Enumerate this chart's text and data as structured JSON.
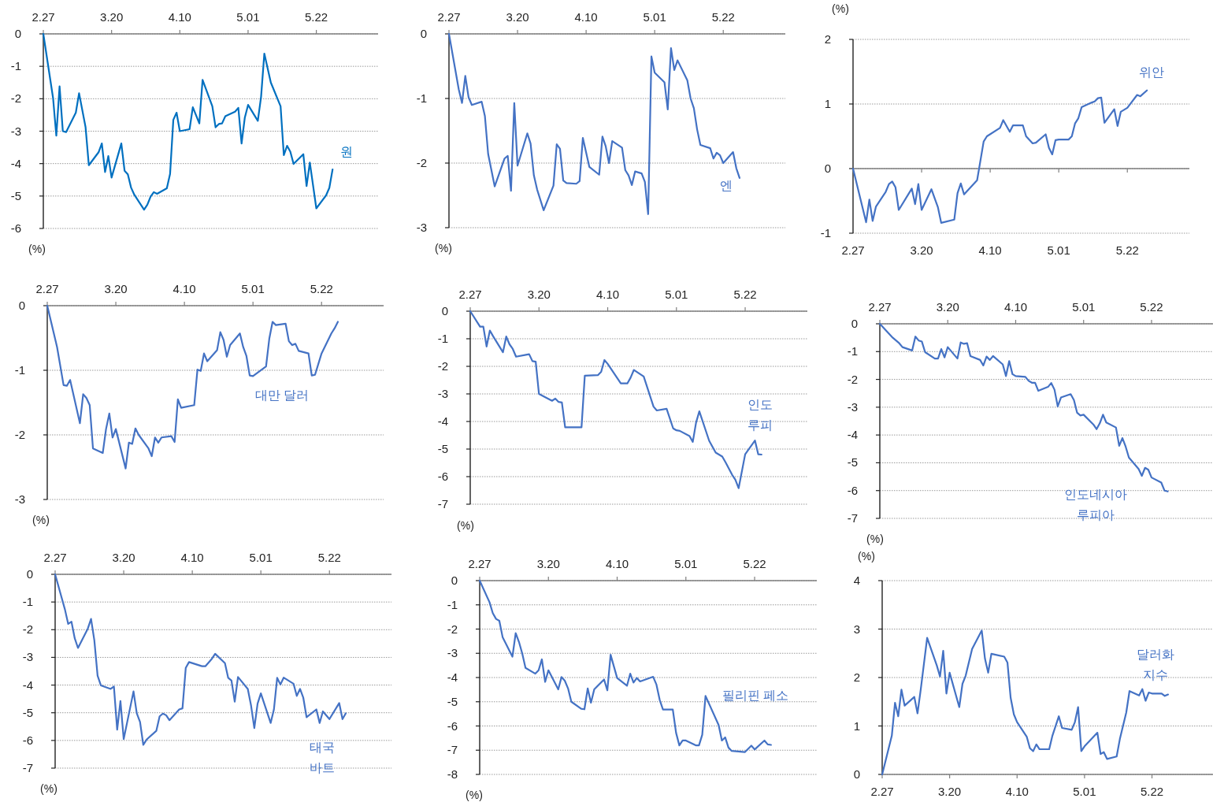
{
  "chart_data": [
    {
      "type": "line",
      "ylabel": "(%)",
      "grid": "y",
      "xlim": [
        "--02-27",
        "--06-10"
      ],
      "ylim": [
        -6,
        0
      ],
      "yticks": [
        0,
        -1,
        -2,
        -3,
        -4,
        -5,
        -6
      ],
      "xticks": [
        {
          "value": "--02-27",
          "label": "2.27"
        },
        {
          "value": "--03-20",
          "label": "3.20"
        },
        {
          "value": "--04-10",
          "label": "4.10"
        },
        {
          "value": "--05-01",
          "label": "5.01"
        },
        {
          "value": "--05-22",
          "label": "5.22"
        }
      ],
      "x": [
        "--02-27",
        "--03-02",
        "--03-03",
        "--03-04",
        "--03-05",
        "--03-06",
        "--03-09",
        "--03-10",
        "--03-12",
        "--03-13",
        "--03-16",
        "--03-17",
        "--03-18",
        "--03-19",
        "--03-20",
        "--03-23",
        "--03-24",
        "--03-25",
        "--03-26",
        "--03-27",
        "--03-30",
        "--03-31",
        "--04-01",
        "--04-02",
        "--04-03",
        "--04-06",
        "--04-07",
        "--04-08",
        "--04-09",
        "--04-10",
        "--04-13",
        "--04-14",
        "--04-16",
        "--04-17",
        "--04-20",
        "--04-21",
        "--04-22",
        "--04-23",
        "--04-24",
        "--04-27",
        "--04-28",
        "--04-29",
        "--04-30",
        "--05-01",
        "--05-04",
        "--05-05",
        "--05-06",
        "--05-08",
        "--05-11",
        "--05-12",
        "--05-13",
        "--05-14",
        "--05-15",
        "--05-18",
        "--05-19",
        "--05-20",
        "--05-22",
        "--05-25",
        "--05-26",
        "--05-27"
      ],
      "series": [
        {
          "name": "원",
          "color": "#0070c0",
          "values": [
            0,
            -1.98,
            -3.14,
            -1.62,
            -3.0,
            -3.03,
            -2.43,
            -1.83,
            -2.88,
            -4.05,
            -3.65,
            -3.38,
            -4.26,
            -3.77,
            -4.43,
            -3.38,
            -4.22,
            -4.33,
            -4.74,
            -4.96,
            -5.42,
            -5.27,
            -5.02,
            -4.88,
            -4.93,
            -4.76,
            -4.32,
            -2.65,
            -2.43,
            -3.0,
            -2.94,
            -2.26,
            -2.76,
            -1.42,
            -2.23,
            -2.88,
            -2.78,
            -2.76,
            -2.54,
            -2.4,
            -2.28,
            -3.38,
            -2.58,
            -2.19,
            -2.68,
            -1.94,
            -0.61,
            -1.5,
            -2.23,
            -3.74,
            -3.45,
            -3.63,
            -4.01,
            -3.71,
            -4.69,
            -3.97,
            -5.38,
            -4.98,
            -4.75,
            -4.18
          ]
        }
      ]
    },
    {
      "type": "line",
      "ylabel": "(%)",
      "grid": "y",
      "xlim": [
        "--02-27",
        "--06-10"
      ],
      "ylim": [
        -3,
        0
      ],
      "yticks": [
        0,
        -1,
        -2,
        -3
      ],
      "xticks": [
        {
          "value": "--02-27",
          "label": "2.27"
        },
        {
          "value": "--03-20",
          "label": "3.20"
        },
        {
          "value": "--04-10",
          "label": "4.10"
        },
        {
          "value": "--05-01",
          "label": "5.01"
        },
        {
          "value": "--05-22",
          "label": "5.22"
        }
      ],
      "x": [
        "--02-27",
        "--03-02",
        "--03-03",
        "--03-04",
        "--03-05",
        "--03-06",
        "--03-09",
        "--03-10",
        "--03-11",
        "--03-13",
        "--03-16",
        "--03-17",
        "--03-18",
        "--03-19",
        "--03-20",
        "--03-23",
        "--03-24",
        "--03-25",
        "--03-26",
        "--03-28",
        "--03-31",
        "--04-01",
        "--04-02",
        "--04-03",
        "--04-04",
        "--04-07",
        "--04-08",
        "--04-09",
        "--04-11",
        "--04-14",
        "--04-15",
        "--04-16",
        "--04-17",
        "--04-18",
        "--04-21",
        "--04-22",
        "--04-23",
        "--04-24",
        "--04-25",
        "--04-27",
        "--04-28",
        "--04-29",
        "--04-30",
        "--05-01",
        "--05-04",
        "--05-05",
        "--05-06",
        "--05-07",
        "--05-08",
        "--05-11",
        "--05-12",
        "--05-13",
        "--05-14",
        "--05-15",
        "--05-18",
        "--05-19",
        "--05-20",
        "--05-21",
        "--05-22",
        "--05-25",
        "--05-26",
        "--05-27"
      ],
      "series": [
        {
          "name": "엔",
          "color": "#4472c4",
          "values": [
            0,
            -0.86,
            -1.07,
            -0.65,
            -0.98,
            -1.1,
            -1.05,
            -1.27,
            -1.86,
            -2.36,
            -1.93,
            -1.89,
            -2.43,
            -1.07,
            -2.04,
            -1.54,
            -1.7,
            -2.19,
            -2.41,
            -2.73,
            -2.35,
            -1.71,
            -1.78,
            -2.27,
            -2.31,
            -2.32,
            -2.28,
            -1.61,
            -2.06,
            -2.18,
            -1.59,
            -1.74,
            -2.0,
            -1.66,
            -1.76,
            -2.11,
            -2.19,
            -2.34,
            -2.13,
            -2.16,
            -2.29,
            -2.79,
            -0.35,
            -0.6,
            -0.75,
            -1.17,
            -0.22,
            -0.56,
            -0.41,
            -0.72,
            -1.0,
            -1.15,
            -1.48,
            -1.72,
            -1.77,
            -1.93,
            -1.84,
            -1.88,
            -2.0,
            -1.83,
            -2.08,
            -2.23
          ]
        }
      ]
    },
    {
      "type": "line",
      "ylabel": "(%)",
      "grid": "y",
      "xlim": [
        "--02-27",
        "--06-10"
      ],
      "ylim": [
        -1,
        2
      ],
      "yticks": [
        -1,
        0,
        1,
        2
      ],
      "xticks": [
        {
          "value": "--02-27",
          "label": "2.27"
        },
        {
          "value": "--03-20",
          "label": "3.20"
        },
        {
          "value": "--04-10",
          "label": "4.10"
        },
        {
          "value": "--05-01",
          "label": "5.01"
        },
        {
          "value": "--05-22",
          "label": "5.22"
        }
      ],
      "x": [
        "--02-27",
        "--03-03",
        "--03-04",
        "--03-05",
        "--03-06",
        "--03-09",
        "--03-10",
        "--03-11",
        "--03-12",
        "--03-13",
        "--03-17",
        "--03-18",
        "--03-19",
        "--03-20",
        "--03-23",
        "--03-25",
        "--03-26",
        "--03-30",
        "--03-31",
        "--04-01",
        "--04-02",
        "--04-06",
        "--04-08",
        "--04-09",
        "--04-13",
        "--04-14",
        "--04-16",
        "--04-17",
        "--04-20",
        "--04-21",
        "--04-23",
        "--04-24",
        "--04-27",
        "--04-28",
        "--04-29",
        "--04-30",
        "--05-01",
        "--05-04",
        "--05-05",
        "--05-06",
        "--05-07",
        "--05-08",
        "--05-11",
        "--05-12",
        "--05-13",
        "--05-14",
        "--05-15",
        "--05-18",
        "--05-19",
        "--05-20",
        "--05-22",
        "--05-25",
        "--05-26",
        "--05-28"
      ],
      "series": [
        {
          "name": "위안",
          "color": "#4472c4",
          "values": [
            0,
            -0.83,
            -0.48,
            -0.81,
            -0.59,
            -0.36,
            -0.24,
            -0.2,
            -0.29,
            -0.64,
            -0.31,
            -0.55,
            -0.24,
            -0.64,
            -0.32,
            -0.6,
            -0.84,
            -0.79,
            -0.38,
            -0.23,
            -0.4,
            -0.18,
            0.42,
            0.5,
            0.63,
            0.75,
            0.57,
            0.67,
            0.67,
            0.5,
            0.39,
            0.4,
            0.53,
            0.32,
            0.22,
            0.44,
            0.45,
            0.45,
            0.5,
            0.7,
            0.78,
            0.95,
            1.02,
            1.04,
            1.09,
            1.1,
            0.71,
            0.92,
            0.66,
            0.88,
            0.94,
            1.14,
            1.12,
            1.21
          ]
        }
      ]
    },
    {
      "type": "line",
      "ylabel": "(%)",
      "grid": "y",
      "xlim": [
        "--02-27",
        "--06-10"
      ],
      "ylim": [
        -3,
        0
      ],
      "yticks": [
        0,
        -1,
        -2,
        -3
      ],
      "xticks": [
        {
          "value": "--02-27",
          "label": "2.27"
        },
        {
          "value": "--03-20",
          "label": "3.20"
        },
        {
          "value": "--04-10",
          "label": "4.10"
        },
        {
          "value": "--05-01",
          "label": "5.01"
        },
        {
          "value": "--05-22",
          "label": "5.22"
        }
      ],
      "x": [
        "--02-27",
        "--03-02",
        "--03-04",
        "--03-05",
        "--03-06",
        "--03-09",
        "--03-10",
        "--03-11",
        "--03-12",
        "--03-13",
        "--03-16",
        "--03-17",
        "--03-18",
        "--03-19",
        "--03-20",
        "--03-23",
        "--03-24",
        "--03-25",
        "--03-26",
        "--03-27",
        "--03-30",
        "--03-31",
        "--04-01",
        "--04-02",
        "--04-03",
        "--04-06",
        "--04-07",
        "--04-08",
        "--04-09",
        "--04-13",
        "--04-14",
        "--04-15",
        "--04-16",
        "--04-17",
        "--04-20",
        "--04-21",
        "--04-22",
        "--04-23",
        "--04-24",
        "--04-27",
        "--04-28",
        "--04-29",
        "--04-30",
        "--05-01",
        "--05-05",
        "--05-06",
        "--05-07",
        "--05-08",
        "--05-11",
        "--05-12",
        "--05-13",
        "--05-14",
        "--05-15",
        "--05-18",
        "--05-19",
        "--05-20",
        "--05-22",
        "--05-25",
        "--05-26",
        "--05-27"
      ],
      "series": [
        {
          "name": "대만 달러",
          "color": "#4472c4",
          "values": [
            0,
            -0.64,
            -1.23,
            -1.24,
            -1.15,
            -1.82,
            -1.37,
            -1.43,
            -1.54,
            -2.21,
            -2.28,
            -1.91,
            -1.67,
            -2.04,
            -1.91,
            -2.52,
            -2.12,
            -2.14,
            -1.9,
            -2.0,
            -2.21,
            -2.33,
            -2.04,
            -2.12,
            -2.04,
            -2.02,
            -2.11,
            -1.45,
            -1.58,
            -1.54,
            -0.99,
            -1.01,
            -0.74,
            -0.86,
            -0.69,
            -0.41,
            -0.53,
            -0.79,
            -0.61,
            -0.43,
            -0.64,
            -0.78,
            -1.08,
            -1.09,
            -0.94,
            -0.51,
            -0.25,
            -0.3,
            -0.28,
            -0.55,
            -0.61,
            -0.59,
            -0.7,
            -0.74,
            -1.08,
            -1.07,
            -0.74,
            -0.43,
            -0.35,
            -0.25
          ]
        }
      ]
    },
    {
      "type": "line",
      "ylabel": "(%)",
      "grid": "y",
      "xlim": [
        "--02-27",
        "--06-10"
      ],
      "ylim": [
        -7,
        0
      ],
      "yticks": [
        0,
        -1,
        -2,
        -3,
        -4,
        -5,
        -6,
        -7
      ],
      "xticks": [
        {
          "value": "--02-27",
          "label": "2.27"
        },
        {
          "value": "--03-20",
          "label": "3.20"
        },
        {
          "value": "--04-10",
          "label": "4.10"
        },
        {
          "value": "--05-01",
          "label": "5.01"
        },
        {
          "value": "--05-22",
          "label": "5.22"
        }
      ],
      "x": [
        "--02-27",
        "--03-02",
        "--03-03",
        "--03-04",
        "--03-05",
        "--03-06",
        "--03-09",
        "--03-10",
        "--03-11",
        "--03-12",
        "--03-13",
        "--03-16",
        "--03-17",
        "--03-18",
        "--03-19",
        "--03-20",
        "--03-24",
        "--03-25",
        "--03-26",
        "--03-27",
        "--03-28",
        "--04-02",
        "--04-03",
        "--04-07",
        "--04-08",
        "--04-09",
        "--04-10",
        "--04-14",
        "--04-16",
        "--04-17",
        "--04-18",
        "--04-21",
        "--04-24",
        "--04-25",
        "--04-28",
        "--04-30",
        "--05-01",
        "--05-02",
        "--05-05",
        "--05-06",
        "--05-07",
        "--05-08",
        "--05-11",
        "--05-13",
        "--05-15",
        "--05-16",
        "--05-18",
        "--05-19",
        "--05-20",
        "--05-22",
        "--05-25",
        "--05-26",
        "--05-27"
      ],
      "series": [
        {
          "name": "인도 루피",
          "color": "#4472c4",
          "values": [
            0,
            -0.56,
            -0.56,
            -1.28,
            -0.7,
            -0.91,
            -1.49,
            -0.92,
            -1.2,
            -1.37,
            -1.65,
            -1.58,
            -1.56,
            -1.81,
            -1.83,
            -3.0,
            -3.25,
            -3.17,
            -3.29,
            -3.31,
            -4.21,
            -4.21,
            -2.34,
            -2.32,
            -2.2,
            -1.77,
            -1.91,
            -2.62,
            -2.62,
            -2.41,
            -2.13,
            -2.37,
            -3.46,
            -3.6,
            -3.54,
            -4.25,
            -4.32,
            -4.34,
            -4.53,
            -4.74,
            -4.04,
            -3.63,
            -4.7,
            -5.13,
            -5.27,
            -5.48,
            -5.93,
            -6.11,
            -6.42,
            -5.19,
            -4.69,
            -5.19,
            -5.2
          ]
        }
      ]
    },
    {
      "type": "line",
      "ylabel": "(%)",
      "grid": "y",
      "xlim": [
        "--02-27",
        "--06-10"
      ],
      "ylim": [
        -7,
        0
      ],
      "yticks": [
        0,
        -1,
        -2,
        -3,
        -4,
        -5,
        -6,
        -7
      ],
      "xticks": [
        {
          "value": "--02-27",
          "label": "2.27"
        },
        {
          "value": "--03-20",
          "label": "3.20"
        },
        {
          "value": "--04-10",
          "label": "4.10"
        },
        {
          "value": "--05-01",
          "label": "5.01"
        },
        {
          "value": "--05-22",
          "label": "5.22"
        }
      ],
      "x": [
        "--02-27",
        "--03-03",
        "--03-05",
        "--03-06",
        "--03-09",
        "--03-10",
        "--03-11",
        "--03-12",
        "--03-13",
        "--03-16",
        "--03-17",
        "--03-18",
        "--03-19",
        "--03-20",
        "--03-23",
        "--03-24",
        "--03-25",
        "--03-26",
        "--03-27",
        "--03-30",
        "--03-31",
        "--04-01",
        "--04-02",
        "--04-03",
        "--04-06",
        "--04-07",
        "--04-08",
        "--04-09",
        "--04-10",
        "--04-13",
        "--04-14",
        "--04-15",
        "--04-16",
        "--04-17",
        "--04-20",
        "--04-21",
        "--04-22",
        "--04-23",
        "--04-24",
        "--04-27",
        "--04-28",
        "--04-29",
        "--04-30",
        "--05-01",
        "--05-04",
        "--05-05",
        "--05-06",
        "--05-07",
        "--05-08",
        "--05-11",
        "--05-12",
        "--05-13",
        "--05-14",
        "--05-15",
        "--05-18",
        "--05-19",
        "--05-20",
        "--05-21",
        "--05-22",
        "--05-25",
        "--05-26",
        "--05-27"
      ],
      "series": [
        {
          "name": "인도네시아 루피아",
          "color": "#4472c4",
          "values": [
            0,
            -0.5,
            -0.7,
            -0.84,
            -0.96,
            -0.46,
            -0.6,
            -0.64,
            -1.02,
            -1.25,
            -1.25,
            -0.91,
            -1.21,
            -0.84,
            -1.25,
            -0.67,
            -0.72,
            -0.7,
            -1.16,
            -1.3,
            -1.5,
            -1.18,
            -1.3,
            -1.16,
            -1.46,
            -1.88,
            -1.34,
            -1.81,
            -1.88,
            -1.91,
            -2.05,
            -2.12,
            -2.12,
            -2.41,
            -2.27,
            -2.13,
            -2.37,
            -2.97,
            -2.65,
            -2.53,
            -2.74,
            -3.2,
            -3.3,
            -3.27,
            -3.62,
            -3.79,
            -3.58,
            -3.27,
            -3.55,
            -3.73,
            -4.39,
            -4.11,
            -4.42,
            -4.81,
            -5.22,
            -5.47,
            -5.18,
            -5.25,
            -5.53,
            -5.71,
            -6.0,
            -6.03
          ]
        }
      ]
    },
    {
      "type": "line",
      "ylabel": "(%)",
      "grid": "y",
      "xlim": [
        "--02-27",
        "--06-10"
      ],
      "ylim": [
        -7,
        0
      ],
      "yticks": [
        0,
        -1,
        -2,
        -3,
        -4,
        -5,
        -6,
        -7
      ],
      "xticks": [
        {
          "value": "--02-27",
          "label": "2.27"
        },
        {
          "value": "--03-20",
          "label": "3.20"
        },
        {
          "value": "--04-10",
          "label": "4.10"
        },
        {
          "value": "--05-01",
          "label": "5.01"
        },
        {
          "value": "--05-22",
          "label": "5.22"
        }
      ],
      "x": [
        "--02-27",
        "--03-02",
        "--03-03",
        "--03-04",
        "--03-05",
        "--03-06",
        "--03-09",
        "--03-10",
        "--03-11",
        "--03-12",
        "--03-13",
        "--03-16",
        "--03-17",
        "--03-18",
        "--03-19",
        "--03-20",
        "--03-23",
        "--03-24",
        "--03-25",
        "--03-26",
        "--03-27",
        "--03-30",
        "--03-31",
        "--04-01",
        "--04-02",
        "--04-03",
        "--04-06",
        "--04-07",
        "--04-08",
        "--04-09",
        "--04-13",
        "--04-14",
        "--04-16",
        "--04-17",
        "--04-20",
        "--04-21",
        "--04-22",
        "--04-23",
        "--04-24",
        "--04-27",
        "--04-28",
        "--04-29",
        "--04-30",
        "--05-01",
        "--05-04",
        "--05-05",
        "--05-06",
        "--05-07",
        "--05-08",
        "--05-11",
        "--05-12",
        "--05-13",
        "--05-14",
        "--05-15",
        "--05-18",
        "--05-19",
        "--05-20",
        "--05-22",
        "--05-25",
        "--05-26",
        "--05-27"
      ],
      "series": [
        {
          "name": "태국 바트",
          "color": "#4472c4",
          "values": [
            0,
            -1.27,
            -1.79,
            -1.71,
            -2.31,
            -2.66,
            -1.96,
            -1.61,
            -2.38,
            -3.66,
            -4.01,
            -4.14,
            -4.05,
            -5.61,
            -4.58,
            -5.95,
            -4.23,
            -5.02,
            -5.33,
            -6.16,
            -5.97,
            -5.65,
            -5.13,
            -5.03,
            -5.09,
            -5.27,
            -4.88,
            -4.84,
            -3.38,
            -3.17,
            -3.32,
            -3.32,
            -3.05,
            -2.87,
            -3.21,
            -3.74,
            -3.84,
            -4.6,
            -3.71,
            -4.14,
            -4.74,
            -5.55,
            -4.67,
            -4.3,
            -5.37,
            -4.88,
            -3.74,
            -3.98,
            -3.73,
            -3.95,
            -4.39,
            -4.14,
            -4.46,
            -5.16,
            -4.88,
            -5.37,
            -4.95,
            -5.23,
            -4.65,
            -5.23,
            -5.02
          ]
        }
      ]
    },
    {
      "type": "line",
      "ylabel": "(%)",
      "grid": "y",
      "xlim": [
        "--02-27",
        "--06-10"
      ],
      "ylim": [
        -8,
        0
      ],
      "yticks": [
        0,
        -1,
        -2,
        -3,
        -4,
        -5,
        -6,
        -7,
        -8
      ],
      "xticks": [
        {
          "value": "--02-27",
          "label": "2.27"
        },
        {
          "value": "--03-20",
          "label": "3.20"
        },
        {
          "value": "--04-10",
          "label": "4.10"
        },
        {
          "value": "--05-01",
          "label": "5.01"
        },
        {
          "value": "--05-22",
          "label": "5.22"
        }
      ],
      "x": [
        "--02-27",
        "--03-02",
        "--03-03",
        "--03-04",
        "--03-05",
        "--03-06",
        "--03-09",
        "--03-10",
        "--03-11",
        "--03-12",
        "--03-13",
        "--03-16",
        "--03-17",
        "--03-18",
        "--03-19",
        "--03-20",
        "--03-23",
        "--03-24",
        "--03-25",
        "--03-26",
        "--03-27",
        "--03-30",
        "--03-31",
        "--04-01",
        "--04-02",
        "--04-03",
        "--04-06",
        "--04-07",
        "--04-08",
        "--04-10",
        "--04-13",
        "--04-14",
        "--04-15",
        "--04-16",
        "--04-17",
        "--04-21",
        "--04-22",
        "--04-23",
        "--04-24",
        "--04-27",
        "--04-28",
        "--04-29",
        "--04-30",
        "--05-01",
        "--05-04",
        "--05-05",
        "--05-06",
        "--05-07",
        "--05-11",
        "--05-12",
        "--05-13",
        "--05-14",
        "--05-15",
        "--05-19",
        "--05-21",
        "--05-22",
        "--05-25",
        "--05-26",
        "--05-27"
      ],
      "series": [
        {
          "name": "필리핀 페소",
          "color": "#4472c4",
          "values": [
            0,
            -0.89,
            -1.34,
            -1.58,
            -1.66,
            -2.33,
            -3.14,
            -2.17,
            -2.53,
            -3.01,
            -3.6,
            -3.84,
            -3.7,
            -3.25,
            -4.18,
            -3.7,
            -4.49,
            -3.98,
            -4.13,
            -4.45,
            -5.0,
            -5.29,
            -5.31,
            -4.45,
            -5.04,
            -4.49,
            -4.08,
            -4.53,
            -3.06,
            -4.02,
            -4.34,
            -3.84,
            -4.21,
            -4.02,
            -4.16,
            -3.97,
            -4.29,
            -4.92,
            -5.32,
            -5.32,
            -6.28,
            -6.8,
            -6.6,
            -6.6,
            -6.8,
            -6.8,
            -6.36,
            -4.76,
            -5.96,
            -6.6,
            -6.47,
            -6.89,
            -7.03,
            -7.08,
            -6.81,
            -6.97,
            -6.6,
            -6.76,
            -6.78
          ]
        }
      ]
    },
    {
      "type": "line",
      "ylabel": "(%)",
      "grid": "y",
      "xlim": [
        "--02-27",
        "--06-10"
      ],
      "ylim": [
        0,
        4
      ],
      "yticks": [
        0,
        1,
        2,
        3,
        4
      ],
      "xticks": [
        {
          "value": "--02-27",
          "label": "2.27"
        },
        {
          "value": "--03-20",
          "label": "3.20"
        },
        {
          "value": "--04-10",
          "label": "4.10"
        },
        {
          "value": "--05-01",
          "label": "5.01"
        },
        {
          "value": "--05-22",
          "label": "5.22"
        }
      ],
      "x": [
        "--02-27",
        "--03-02",
        "--03-03",
        "--03-04",
        "--03-05",
        "--03-06",
        "--03-09",
        "--03-10",
        "--03-11",
        "--03-13",
        "--03-16",
        "--03-17",
        "--03-18",
        "--03-19",
        "--03-20",
        "--03-23",
        "--03-24",
        "--03-25",
        "--03-27",
        "--03-30",
        "--03-31",
        "--04-01",
        "--04-02",
        "--04-06",
        "--04-07",
        "--04-08",
        "--04-09",
        "--04-10",
        "--04-13",
        "--04-14",
        "--04-15",
        "--04-16",
        "--04-17",
        "--04-20",
        "--04-21",
        "--04-23",
        "--04-24",
        "--04-27",
        "--04-28",
        "--04-29",
        "--04-30",
        "--05-01",
        "--05-05",
        "--05-06",
        "--05-07",
        "--05-08",
        "--05-11",
        "--05-12",
        "--05-14",
        "--05-15",
        "--05-18",
        "--05-19",
        "--05-20",
        "--05-21",
        "--05-22",
        "--05-25",
        "--05-26",
        "--05-27"
      ],
      "series": [
        {
          "name": "달러화 지수",
          "color": "#4472c4",
          "values": [
            0,
            0.8,
            1.48,
            1.2,
            1.75,
            1.42,
            1.6,
            1.26,
            1.75,
            2.82,
            2.25,
            2.02,
            2.55,
            1.67,
            2.1,
            1.39,
            1.87,
            2.04,
            2.59,
            2.97,
            2.39,
            2.1,
            2.49,
            2.43,
            2.31,
            1.58,
            1.24,
            1.08,
            0.78,
            0.54,
            0.48,
            0.62,
            0.52,
            0.52,
            0.8,
            1.2,
            0.96,
            0.92,
            1.08,
            1.39,
            0.48,
            0.58,
            0.86,
            0.42,
            0.46,
            0.32,
            0.37,
            0.73,
            1.28,
            1.72,
            1.63,
            1.76,
            1.52,
            1.69,
            1.67,
            1.67,
            1.62,
            1.65
          ]
        }
      ]
    }
  ]
}
